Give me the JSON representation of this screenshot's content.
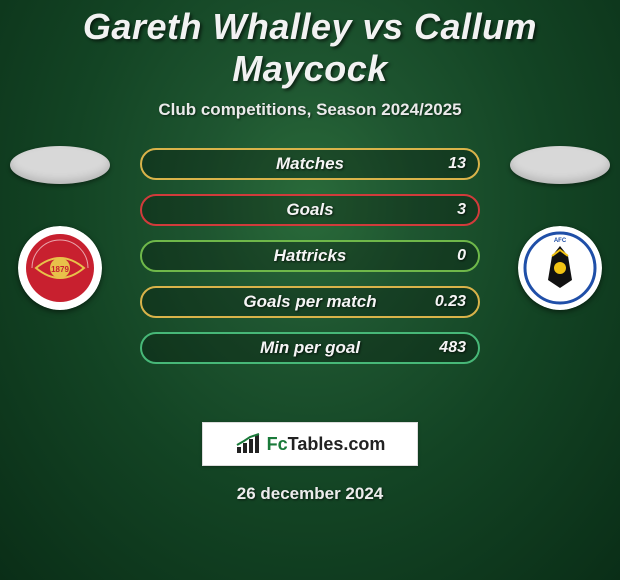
{
  "title": "Gareth Whalley vs Callum Maycock",
  "subtitle": "Club competitions, Season 2024/2025",
  "date": "26 december 2024",
  "brand": {
    "fc": "Fc",
    "rest": "Tables.com"
  },
  "bar_style": {
    "height": 32,
    "gap": 14,
    "radius": 16,
    "label_fontsize": 17,
    "value_fontsize": 16,
    "text_color": "#f5f5f5",
    "bg": "rgba(0,0,0,0.25)"
  },
  "bars": [
    {
      "label": "Matches",
      "value": "13",
      "border_color": "#d9b34a"
    },
    {
      "label": "Goals",
      "value": "3",
      "border_color": "#d13b3b"
    },
    {
      "label": "Hattricks",
      "value": "0",
      "border_color": "#6fb84a"
    },
    {
      "label": "Goals per match",
      "value": "0.23",
      "border_color": "#d9b34a"
    },
    {
      "label": "Min per goal",
      "value": "483",
      "border_color": "#47b878"
    }
  ],
  "players": {
    "left": {
      "name": "Gareth Whalley",
      "silhouette_color": "#d8d8d8",
      "crest": {
        "outer_bg": "#ffffff",
        "inner_bg": "#c8202f",
        "accent": "#e8c14a",
        "text_color": "#ffffff"
      }
    },
    "right": {
      "name": "Callum Maycock",
      "silhouette_color": "#d8d8d8",
      "crest": {
        "outer_bg": "#ffffff",
        "inner_bg": "#111111",
        "accent": "#f3c414",
        "blue": "#1f4fa8",
        "text_color": "#f3c414"
      }
    }
  },
  "colors": {
    "bg_center": "#2a6b3a",
    "bg_mid": "#134424",
    "bg_edge": "#0a2e17",
    "title": "#f2f2f2"
  }
}
